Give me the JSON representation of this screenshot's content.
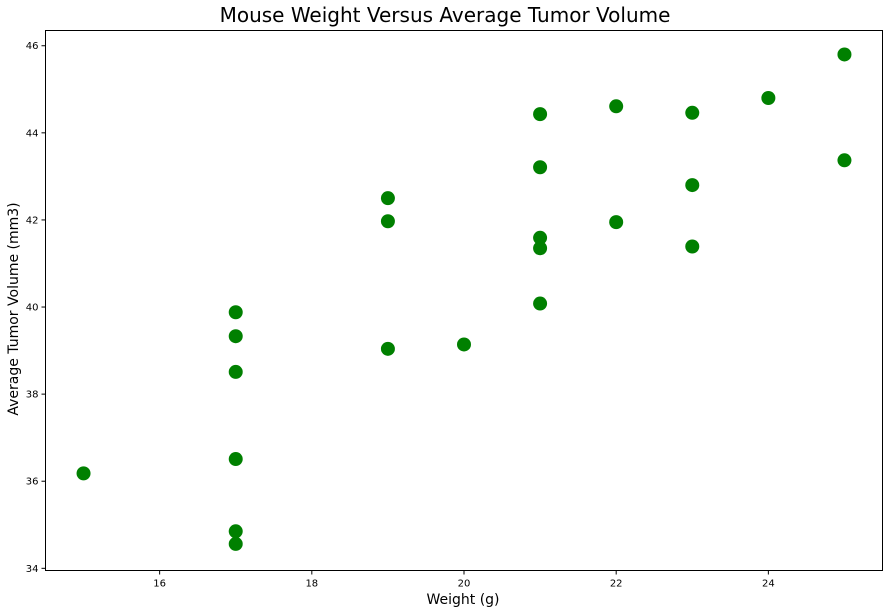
{
  "chart_data": {
    "type": "scatter",
    "title": "Mouse Weight Versus Average Tumor Volume",
    "xlabel": "Weight (g)",
    "ylabel": "Average Tumor Volume (mm3)",
    "xlim": [
      14.5,
      25.5
    ],
    "ylim": [
      33.95,
      46.35
    ],
    "xticks": [
      16,
      18,
      20,
      22,
      24
    ],
    "yticks": [
      34,
      36,
      38,
      40,
      42,
      44,
      46
    ],
    "grid": false,
    "marker_color": "#008000",
    "points": [
      {
        "x": 15,
        "y": 36.18
      },
      {
        "x": 17,
        "y": 39.88
      },
      {
        "x": 17,
        "y": 39.33
      },
      {
        "x": 17,
        "y": 38.51
      },
      {
        "x": 17,
        "y": 36.51
      },
      {
        "x": 17,
        "y": 34.85
      },
      {
        "x": 17,
        "y": 34.56
      },
      {
        "x": 19,
        "y": 42.5
      },
      {
        "x": 19,
        "y": 41.97
      },
      {
        "x": 19,
        "y": 39.04
      },
      {
        "x": 20,
        "y": 39.14
      },
      {
        "x": 21,
        "y": 44.43
      },
      {
        "x": 21,
        "y": 43.21
      },
      {
        "x": 21,
        "y": 41.59
      },
      {
        "x": 21,
        "y": 41.35
      },
      {
        "x": 21,
        "y": 40.08
      },
      {
        "x": 22,
        "y": 44.61
      },
      {
        "x": 22,
        "y": 41.95
      },
      {
        "x": 23,
        "y": 44.46
      },
      {
        "x": 23,
        "y": 42.8
      },
      {
        "x": 23,
        "y": 41.39
      },
      {
        "x": 24,
        "y": 44.8
      },
      {
        "x": 25,
        "y": 45.8
      },
      {
        "x": 25,
        "y": 43.37
      }
    ]
  }
}
